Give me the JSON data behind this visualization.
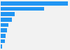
{
  "values": [
    3200,
    2050,
    680,
    520,
    380,
    290,
    240,
    200,
    60
  ],
  "bar_color": "#2196f3",
  "background_color": "#f2f2f2",
  "n_bars": 9
}
